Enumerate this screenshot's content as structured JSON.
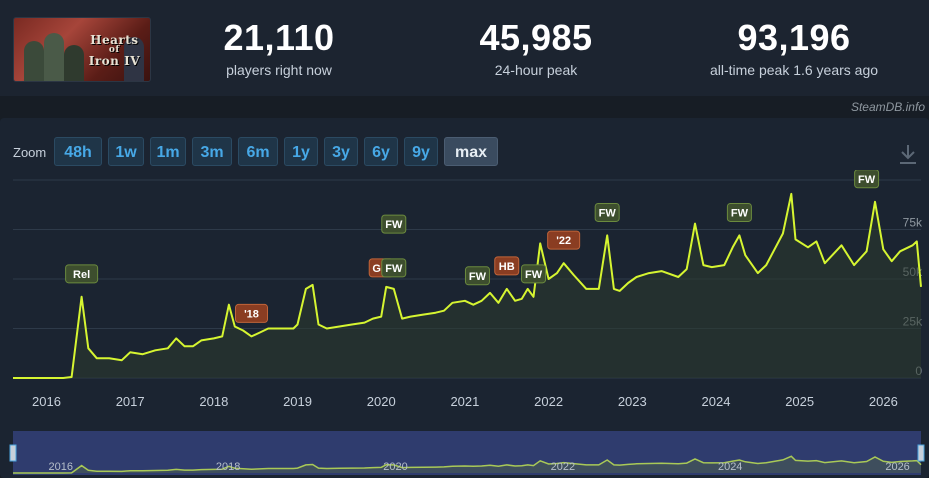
{
  "game": {
    "logo_lines": [
      "Hearts",
      "of",
      "Iron IV"
    ]
  },
  "stats": [
    {
      "value": "21,110",
      "label": "players right now"
    },
    {
      "value": "45,985",
      "label": "24-hour peak"
    },
    {
      "value": "93,196",
      "label": "all-time peak 1.6 years ago"
    }
  ],
  "credit": "SteamDB.info",
  "zoom": {
    "label": "Zoom",
    "options": [
      "48h",
      "1w",
      "1m",
      "3m",
      "6m",
      "1y",
      "3y",
      "6y",
      "9y",
      "max"
    ],
    "selected": "max"
  },
  "colors": {
    "line": "#d6f531",
    "fill": "#2b3b2e",
    "tag_green": "#3d4e2e",
    "tag_orange": "#8a3d22",
    "nav_bg": "#2f3c6e"
  },
  "icons": {
    "download": "download-icon"
  },
  "chart_data": {
    "type": "line",
    "xlabel": "",
    "ylabel": "",
    "xlim": [
      2015.6,
      2026.45
    ],
    "ylim": [
      0,
      100000
    ],
    "y_ticks": [
      0,
      25000,
      50000,
      75000
    ],
    "y_tick_labels": [
      "0",
      "25k",
      "50k",
      "75k"
    ],
    "x_ticks": [
      2016,
      2017,
      2018,
      2019,
      2020,
      2021,
      2022,
      2023,
      2024,
      2025,
      2026
    ],
    "x_tick_labels": [
      "2016",
      "2017",
      "2018",
      "2019",
      "2020",
      "2021",
      "2022",
      "2023",
      "2024",
      "2025",
      "2026"
    ],
    "grid": true,
    "series": [
      {
        "x": [
          2015.6,
          2015.7,
          2016.0,
          2016.2,
          2016.3,
          2016.42,
          2016.5,
          2016.6,
          2016.75,
          2016.9,
          2017.0,
          2017.15,
          2017.3,
          2017.45,
          2017.55,
          2017.65,
          2017.75,
          2017.85,
          2018.0,
          2018.1,
          2018.18,
          2018.25,
          2018.35,
          2018.45,
          2018.55,
          2018.65,
          2018.8,
          2018.95,
          2019.0,
          2019.1,
          2019.18,
          2019.25,
          2019.35,
          2019.5,
          2019.65,
          2019.8,
          2019.9,
          2020.0,
          2020.06,
          2020.15,
          2020.25,
          2020.35,
          2020.5,
          2020.65,
          2020.75,
          2020.85,
          2021.0,
          2021.1,
          2021.2,
          2021.3,
          2021.4,
          2021.5,
          2021.6,
          2021.68,
          2021.75,
          2021.82,
          2021.9,
          2022.0,
          2022.1,
          2022.18,
          2022.3,
          2022.45,
          2022.6,
          2022.7,
          2022.78,
          2022.85,
          2022.95,
          2023.05,
          2023.2,
          2023.35,
          2023.55,
          2023.65,
          2023.75,
          2023.85,
          2023.95,
          2024.1,
          2024.2,
          2024.28,
          2024.35,
          2024.5,
          2024.6,
          2024.8,
          2024.9,
          2024.95,
          2025.1,
          2025.2,
          2025.3,
          2025.5,
          2025.65,
          2025.8,
          2025.9,
          2026.0,
          2026.1,
          2026.2,
          2026.35,
          2026.4,
          2026.45
        ],
        "y": [
          0,
          0,
          0,
          0,
          500,
          41000,
          15000,
          10000,
          10000,
          9000,
          13000,
          12000,
          14000,
          15000,
          20000,
          16000,
          16000,
          19000,
          20000,
          21000,
          37000,
          26000,
          24000,
          21000,
          23000,
          25000,
          25000,
          25000,
          27000,
          45000,
          47000,
          27000,
          25000,
          26000,
          27000,
          28000,
          30000,
          31000,
          46000,
          45000,
          30000,
          31000,
          32000,
          33000,
          34000,
          38000,
          39000,
          37000,
          39000,
          43000,
          38000,
          45000,
          39000,
          40000,
          45000,
          41000,
          68000,
          50000,
          53000,
          58000,
          52000,
          45000,
          45000,
          72000,
          45000,
          44000,
          48000,
          51000,
          53000,
          54000,
          51000,
          55000,
          78000,
          57000,
          56000,
          57000,
          66000,
          72000,
          62000,
          53000,
          57000,
          73000,
          93000,
          70000,
          66000,
          69000,
          58000,
          67000,
          57000,
          64000,
          89000,
          65000,
          59000,
          64000,
          67000,
          69000,
          46000
        ]
      }
    ],
    "annotations": [
      {
        "text": "Rel",
        "x": 2016.42,
        "y": 41000,
        "kind": "green"
      },
      {
        "text": "'18",
        "x": 2018.45,
        "y": 21000,
        "kind": "orange"
      },
      {
        "text": "GM",
        "x": 2020.0,
        "y": 44000,
        "kind": "orange"
      },
      {
        "text": "FW",
        "x": 2020.15,
        "y": 55000,
        "kind": "green"
      },
      {
        "text": "FW",
        "x": 2020.15,
        "y": 44000,
        "kind": "green"
      },
      {
        "text": "FW",
        "x": 2021.15,
        "y": 40000,
        "kind": "green"
      },
      {
        "text": "HB",
        "x": 2021.5,
        "y": 45000,
        "kind": "orange"
      },
      {
        "text": "FW",
        "x": 2021.82,
        "y": 41000,
        "kind": "green"
      },
      {
        "text": "'22",
        "x": 2022.18,
        "y": 58000,
        "kind": "orange"
      },
      {
        "text": "FW",
        "x": 2022.7,
        "y": 72000,
        "kind": "green"
      },
      {
        "text": "FW",
        "x": 2024.28,
        "y": 72000,
        "kind": "green"
      },
      {
        "text": "FW",
        "x": 2025.8,
        "y": 89000,
        "kind": "green"
      }
    ],
    "navigator_labels": [
      "2016",
      "2018",
      "2020",
      "2022",
      "2024",
      "2026"
    ]
  }
}
